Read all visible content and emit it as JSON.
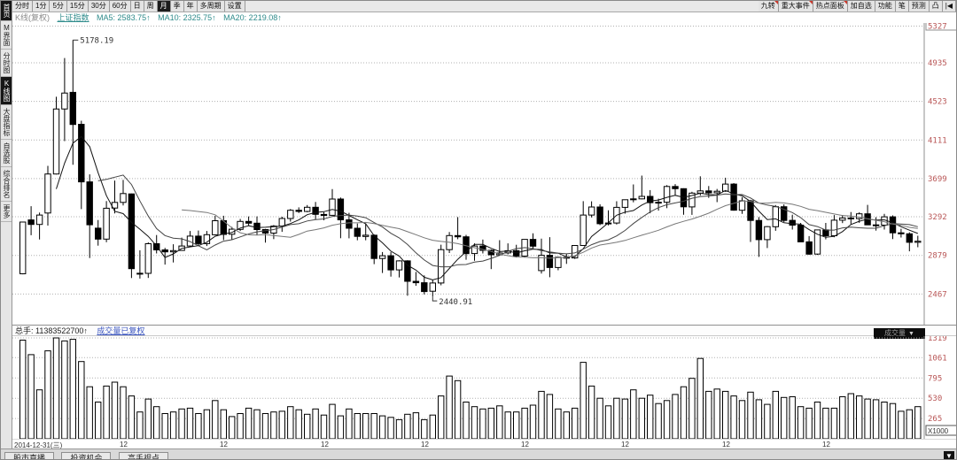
{
  "toolbar": {
    "period_buttons": [
      {
        "label": "分时",
        "selected": false
      },
      {
        "label": "1分",
        "selected": false
      },
      {
        "label": "5分",
        "selected": false
      },
      {
        "label": "15分",
        "selected": false
      },
      {
        "label": "30分",
        "selected": false
      },
      {
        "label": "60分",
        "selected": false
      },
      {
        "label": "日",
        "selected": false
      },
      {
        "label": "周",
        "selected": false
      },
      {
        "label": "月",
        "selected": true
      },
      {
        "label": "季",
        "selected": false
      },
      {
        "label": "年",
        "selected": false
      },
      {
        "label": "多周期",
        "selected": false
      },
      {
        "label": "设置",
        "selected": false
      }
    ],
    "right_buttons": [
      {
        "label": "九转",
        "badge": true
      },
      {
        "label": "重大事件",
        "badge": true
      },
      {
        "label": "热点面板",
        "badge": true
      },
      {
        "label": "加自选",
        "badge": false
      },
      {
        "label": "功能",
        "badge": false
      },
      {
        "label": "笔",
        "badge": false
      },
      {
        "label": "预测",
        "badge": false
      },
      {
        "label": "凸",
        "badge": false
      },
      {
        "label": "|◀",
        "badge": false
      }
    ]
  },
  "sidebar": {
    "items": [
      {
        "label": "首页",
        "selected": true
      },
      {
        "label": "M界面",
        "selected": false
      },
      {
        "label": "分时图",
        "selected": false
      },
      {
        "label": "K线图",
        "selected": true
      },
      {
        "label": "大盘指标",
        "selected": false
      },
      {
        "label": "自选股",
        "selected": false
      },
      {
        "label": "综合排名",
        "selected": false
      },
      {
        "label": "更多",
        "selected": false
      }
    ]
  },
  "chart_header": {
    "kline_label": "K线(复权)",
    "index_name": "上证指数",
    "ma5_label": "MA5: 2583.75↑",
    "ma10_label": "MA10: 2325.75↑",
    "ma20_label": "MA20: 2219.08↑"
  },
  "volume_header": {
    "total_label": "总手: 11383522700↑",
    "link_label": "成交量已复权",
    "selector_label": "成交量",
    "selector_arrow": "▼"
  },
  "x_axis": {
    "start_label": "2014-12-31(三)",
    "dec_label": "12",
    "dec_indices": [
      12,
      24,
      36,
      48,
      60,
      72,
      84,
      96
    ]
  },
  "bottom_bar": {
    "tabs": [
      "股市直播",
      "投资机会",
      "高手视点"
    ],
    "expand_icon": "▼"
  },
  "colors": {
    "axis_label": "#b85555",
    "teal_text": "#2e8b8b",
    "link_blue": "#3a55c0",
    "candle_up_fill": "#ffffff",
    "candle_down_fill": "#000000",
    "candle_stroke": "#000000",
    "ma5": "#111111",
    "ma10": "#444444",
    "ma20": "#777777"
  },
  "chart_data": {
    "type": "candlestick+volume",
    "title": "上证指数 月K线 (K线复权)",
    "period": "monthly",
    "start_month": "2014-12",
    "end_month": "2023-11",
    "price_axis": {
      "ticks": [
        5327,
        4935,
        4523,
        4111,
        3699,
        3292,
        2879,
        2467
      ],
      "ylim": [
        2140,
        5360
      ],
      "grid": true,
      "side": "right"
    },
    "volume_axis": {
      "ticks": [
        1319,
        1061,
        795,
        530,
        265
      ],
      "vmax": 1342,
      "unit": "X1000",
      "grid": true,
      "side": "right"
    },
    "annotations": [
      {
        "index": 6,
        "anchor": "high",
        "text": "5178.19"
      },
      {
        "index": 49,
        "anchor": "low",
        "text": "2440.91"
      }
    ],
    "ma_periods": [
      5,
      10,
      20
    ],
    "ohlc": [
      [
        2683,
        3239,
        2677,
        3235
      ],
      [
        3258,
        3404,
        3095,
        3210
      ],
      [
        3210,
        3336,
        3049,
        3310
      ],
      [
        3332,
        3835,
        3198,
        3748
      ],
      [
        3748,
        4572,
        3742,
        4442
      ],
      [
        4442,
        4986,
        4099,
        4612
      ],
      [
        4620,
        5178,
        3847,
        4277
      ],
      [
        4279,
        4317,
        3373,
        3664
      ],
      [
        3664,
        3744,
        2851,
        3206
      ],
      [
        3170,
        3257,
        2983,
        3053
      ],
      [
        3053,
        3459,
        3020,
        3383
      ],
      [
        3385,
        3678,
        3327,
        3445
      ],
      [
        3445,
        3685,
        3412,
        3539
      ],
      [
        3536,
        3539,
        2638,
        2738
      ],
      [
        2689,
        2934,
        2632,
        2688
      ],
      [
        2688,
        3018,
        2639,
        3004
      ],
      [
        3004,
        3097,
        2900,
        2938
      ],
      [
        2938,
        2960,
        2781,
        2917
      ],
      [
        2917,
        2998,
        2804,
        2930
      ],
      [
        2932,
        3069,
        2932,
        2979
      ],
      [
        2979,
        3140,
        2969,
        3085
      ],
      [
        3085,
        3145,
        2980,
        3005
      ],
      [
        3005,
        3140,
        2979,
        3100
      ],
      [
        3100,
        3301,
        3093,
        3250
      ],
      [
        3250,
        3302,
        3043,
        3104
      ],
      [
        3105,
        3183,
        3044,
        3159
      ],
      [
        3157,
        3268,
        3140,
        3242
      ],
      [
        3242,
        3295,
        3197,
        3223
      ],
      [
        3223,
        3296,
        3097,
        3155
      ],
      [
        3155,
        3163,
        3016,
        3117
      ],
      [
        3117,
        3203,
        3053,
        3192
      ],
      [
        3192,
        3292,
        3131,
        3273
      ],
      [
        3273,
        3374,
        3240,
        3361
      ],
      [
        3361,
        3392,
        3332,
        3349
      ],
      [
        3349,
        3417,
        3340,
        3393
      ],
      [
        3393,
        3450,
        3260,
        3317
      ],
      [
        3317,
        3340,
        3254,
        3307
      ],
      [
        3307,
        3587,
        3307,
        3481
      ],
      [
        3481,
        3497,
        3063,
        3259
      ],
      [
        3259,
        3334,
        3062,
        3169
      ],
      [
        3169,
        3219,
        3041,
        3082
      ],
      [
        3082,
        3220,
        3041,
        3095
      ],
      [
        3095,
        3103,
        2786,
        2847
      ],
      [
        2847,
        2915,
        2691,
        2876
      ],
      [
        2876,
        2915,
        2653,
        2725
      ],
      [
        2725,
        2827,
        2644,
        2821
      ],
      [
        2821,
        2827,
        2449,
        2603
      ],
      [
        2603,
        2703,
        2555,
        2588
      ],
      [
        2588,
        2666,
        2463,
        2494
      ],
      [
        2497,
        2618,
        2441,
        2585
      ],
      [
        2585,
        2994,
        2560,
        2941
      ],
      [
        2941,
        3129,
        2905,
        3091
      ],
      [
        3091,
        3288,
        3052,
        3078
      ],
      [
        3078,
        3098,
        2833,
        2899
      ],
      [
        2899,
        3008,
        2822,
        2979
      ],
      [
        2979,
        3048,
        2900,
        2933
      ],
      [
        2933,
        2943,
        2733,
        2886
      ],
      [
        2886,
        3042,
        2886,
        2905
      ],
      [
        2905,
        3008,
        2891,
        2929
      ],
      [
        2929,
        2993,
        2857,
        2872
      ],
      [
        2872,
        3051,
        2857,
        3050
      ],
      [
        3050,
        3115,
        2955,
        2977
      ],
      [
        2717,
        3059,
        2685,
        2880
      ],
      [
        2880,
        3074,
        2646,
        2750
      ],
      [
        2750,
        2864,
        2721,
        2860
      ],
      [
        2860,
        2898,
        2789,
        2852
      ],
      [
        2852,
        2987,
        2842,
        2985
      ],
      [
        2985,
        3458,
        2985,
        3310
      ],
      [
        3310,
        3456,
        3284,
        3396
      ],
      [
        3396,
        3425,
        3202,
        3218
      ],
      [
        3218,
        3360,
        3200,
        3225
      ],
      [
        3225,
        3457,
        3209,
        3392
      ],
      [
        3392,
        3474,
        3325,
        3473
      ],
      [
        3474,
        3637,
        3446,
        3483
      ],
      [
        3483,
        3731,
        3478,
        3509
      ],
      [
        3509,
        3576,
        3329,
        3442
      ],
      [
        3442,
        3485,
        3357,
        3447
      ],
      [
        3447,
        3629,
        3384,
        3615
      ],
      [
        3615,
        3640,
        3515,
        3591
      ],
      [
        3591,
        3595,
        3313,
        3397
      ],
      [
        3397,
        3558,
        3312,
        3544
      ],
      [
        3544,
        3724,
        3518,
        3568
      ],
      [
        3568,
        3620,
        3493,
        3547
      ],
      [
        3547,
        3589,
        3448,
        3564
      ],
      [
        3564,
        3708,
        3558,
        3640
      ],
      [
        3640,
        3651,
        3356,
        3361
      ],
      [
        3361,
        3500,
        3322,
        3462
      ],
      [
        3462,
        3472,
        3023,
        3252
      ],
      [
        3252,
        3288,
        2863,
        3047
      ],
      [
        3047,
        3193,
        2958,
        3186
      ],
      [
        3186,
        3417,
        3142,
        3399
      ],
      [
        3399,
        3424,
        3235,
        3253
      ],
      [
        3253,
        3314,
        3155,
        3202
      ],
      [
        3202,
        3226,
        3024,
        3024
      ],
      [
        3024,
        3085,
        2885,
        2893
      ],
      [
        2893,
        3153,
        2885,
        3151
      ],
      [
        3151,
        3226,
        3050,
        3089
      ],
      [
        3089,
        3310,
        3073,
        3255
      ],
      [
        3255,
        3311,
        3224,
        3279
      ],
      [
        3279,
        3342,
        3213,
        3272
      ],
      [
        3272,
        3339,
        3227,
        3323
      ],
      [
        3323,
        3419,
        3202,
        3205
      ],
      [
        3205,
        3287,
        3144,
        3202
      ],
      [
        3202,
        3322,
        3155,
        3291
      ],
      [
        3291,
        3306,
        3053,
        3120
      ],
      [
        3120,
        3164,
        3070,
        3110
      ],
      [
        3110,
        3126,
        2923,
        3019
      ],
      [
        3019,
        3089,
        2966,
        3030
      ]
    ],
    "volumes": [
      1290,
      1100,
      640,
      1150,
      1319,
      1280,
      1300,
      1010,
      680,
      480,
      690,
      740,
      680,
      560,
      350,
      520,
      420,
      330,
      350,
      390,
      400,
      330,
      380,
      500,
      380,
      290,
      330,
      400,
      380,
      330,
      350,
      360,
      420,
      380,
      320,
      390,
      310,
      450,
      300,
      390,
      330,
      330,
      330,
      300,
      280,
      250,
      320,
      340,
      250,
      310,
      560,
      820,
      760,
      480,
      420,
      390,
      400,
      430,
      350,
      350,
      400,
      440,
      620,
      580,
      390,
      350,
      400,
      1000,
      690,
      530,
      430,
      530,
      520,
      640,
      530,
      570,
      460,
      500,
      580,
      680,
      790,
      1050,
      620,
      650,
      620,
      560,
      500,
      610,
      510,
      450,
      620,
      540,
      550,
      420,
      400,
      480,
      400,
      400,
      550,
      590,
      560,
      520,
      510,
      480,
      460,
      360,
      380,
      420
    ]
  }
}
